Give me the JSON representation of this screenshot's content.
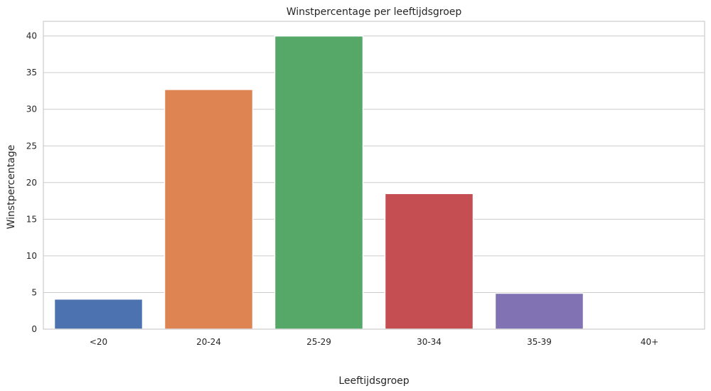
{
  "chart_data": {
    "type": "bar",
    "title": "Winstpercentage per leeftijdsgroep",
    "xlabel": "Leeftijdsgroep",
    "ylabel": "Winstpercentage",
    "categories": [
      "<20",
      "20-24",
      "25-29",
      "30-34",
      "35-39",
      "40+"
    ],
    "values": [
      4.1,
      32.7,
      40.0,
      18.5,
      4.9,
      0
    ],
    "colors": [
      "#4c72b0",
      "#dd8452",
      "#55a868",
      "#c44e52",
      "#8172b3",
      "#937860"
    ],
    "ylim": [
      0,
      42
    ],
    "yticks": [
      "0",
      "5",
      "10",
      "15",
      "20",
      "25",
      "30",
      "35",
      "40"
    ],
    "grid": true,
    "legend": "none"
  }
}
